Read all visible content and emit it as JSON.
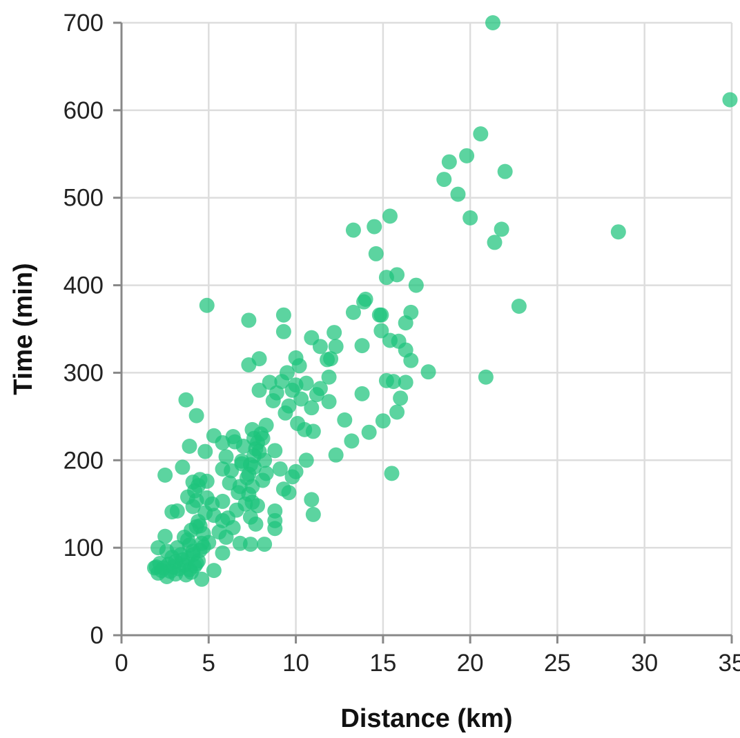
{
  "chart_data": {
    "type": "scatter",
    "title": "",
    "xlabel": "Distance (km)",
    "ylabel": "Time (min)",
    "xlim": [
      0,
      35
    ],
    "ylim": [
      0,
      700
    ],
    "xticks": [
      0,
      5,
      10,
      15,
      20,
      25,
      30,
      35
    ],
    "yticks": [
      0,
      100,
      200,
      300,
      400,
      500,
      600,
      700
    ],
    "grid": true,
    "legend": "none",
    "point_color": "#1DC47B",
    "points": [
      [
        21.3,
        700
      ],
      [
        34.9,
        612
      ],
      [
        20.6,
        573
      ],
      [
        19.8,
        548
      ],
      [
        18.8,
        541
      ],
      [
        22.0,
        530
      ],
      [
        18.5,
        521
      ],
      [
        19.3,
        504
      ],
      [
        20.0,
        477
      ],
      [
        15.4,
        479
      ],
      [
        14.5,
        467
      ],
      [
        13.3,
        463
      ],
      [
        21.8,
        464
      ],
      [
        28.5,
        461
      ],
      [
        21.4,
        449
      ],
      [
        14.6,
        436
      ],
      [
        15.8,
        412
      ],
      [
        15.2,
        409
      ],
      [
        16.9,
        400
      ],
      [
        14.0,
        384
      ],
      [
        13.9,
        381
      ],
      [
        22.8,
        376
      ],
      [
        4.9,
        377
      ],
      [
        13.3,
        369
      ],
      [
        16.6,
        369
      ],
      [
        14.8,
        366
      ],
      [
        14.9,
        366
      ],
      [
        9.3,
        366
      ],
      [
        7.3,
        360
      ],
      [
        16.3,
        357
      ],
      [
        14.9,
        348
      ],
      [
        9.3,
        347
      ],
      [
        12.2,
        346
      ],
      [
        10.9,
        340
      ],
      [
        15.4,
        337
      ],
      [
        15.9,
        336
      ],
      [
        13.8,
        331
      ],
      [
        11.4,
        330
      ],
      [
        12.3,
        330
      ],
      [
        16.3,
        326
      ],
      [
        10.0,
        317
      ],
      [
        7.9,
        316
      ],
      [
        12.0,
        316
      ],
      [
        11.8,
        315
      ],
      [
        16.6,
        314
      ],
      [
        7.3,
        309
      ],
      [
        10.2,
        308
      ],
      [
        17.6,
        301
      ],
      [
        9.5,
        300
      ],
      [
        20.9,
        295
      ],
      [
        11.9,
        295
      ],
      [
        8.5,
        289
      ],
      [
        15.2,
        291
      ],
      [
        15.6,
        290
      ],
      [
        16.3,
        289
      ],
      [
        9.2,
        290
      ],
      [
        10.6,
        288
      ],
      [
        10.0,
        286
      ],
      [
        9.8,
        280
      ],
      [
        11.4,
        282
      ],
      [
        7.9,
        280
      ],
      [
        8.9,
        277
      ],
      [
        11.2,
        275
      ],
      [
        13.8,
        276
      ],
      [
        16.0,
        271
      ],
      [
        10.3,
        270
      ],
      [
        8.7,
        268
      ],
      [
        11.9,
        267
      ],
      [
        3.7,
        269
      ],
      [
        9.6,
        262
      ],
      [
        10.9,
        260
      ],
      [
        15.8,
        255
      ],
      [
        9.4,
        254
      ],
      [
        4.3,
        251
      ],
      [
        12.8,
        246
      ],
      [
        15.0,
        245
      ],
      [
        10.1,
        242
      ],
      [
        8.3,
        240
      ],
      [
        10.5,
        235
      ],
      [
        7.5,
        235
      ],
      [
        11.0,
        233
      ],
      [
        14.2,
        232
      ],
      [
        8.0,
        230
      ],
      [
        5.3,
        228
      ],
      [
        6.4,
        227
      ],
      [
        13.2,
        222
      ],
      [
        7.6,
        225
      ],
      [
        7.8,
        220
      ],
      [
        3.9,
        216
      ],
      [
        7.0,
        216
      ],
      [
        5.8,
        220
      ],
      [
        6.5,
        221
      ],
      [
        7.7,
        213
      ],
      [
        8.8,
        211
      ],
      [
        4.8,
        210
      ],
      [
        12.3,
        206
      ],
      [
        7.6,
        205
      ],
      [
        6.0,
        204
      ],
      [
        8.2,
        200
      ],
      [
        10.6,
        200
      ],
      [
        6.9,
        196
      ],
      [
        7.4,
        195
      ],
      [
        7.6,
        192
      ],
      [
        3.5,
        192
      ],
      [
        9.1,
        190
      ],
      [
        5.8,
        190
      ],
      [
        6.3,
        188
      ],
      [
        10.0,
        187
      ],
      [
        7.3,
        184
      ],
      [
        2.5,
        183
      ],
      [
        15.5,
        185
      ],
      [
        9.8,
        181
      ],
      [
        8.1,
        177
      ],
      [
        4.5,
        178
      ],
      [
        4.1,
        175
      ],
      [
        4.9,
        176
      ],
      [
        6.2,
        174
      ],
      [
        4.4,
        171
      ],
      [
        9.3,
        167
      ],
      [
        9.6,
        163
      ],
      [
        6.7,
        163
      ],
      [
        7.3,
        161
      ],
      [
        3.8,
        158
      ],
      [
        4.9,
        157
      ],
      [
        4.3,
        154
      ],
      [
        5.8,
        153
      ],
      [
        7.5,
        152
      ],
      [
        10.9,
        155
      ],
      [
        7.8,
        148
      ],
      [
        4.1,
        147
      ],
      [
        6.6,
        143
      ],
      [
        3.2,
        142
      ],
      [
        2.9,
        141
      ],
      [
        8.8,
        142
      ],
      [
        11.0,
        138
      ],
      [
        5.3,
        137
      ],
      [
        7.4,
        135
      ],
      [
        6.1,
        134
      ],
      [
        5.8,
        131
      ],
      [
        4.4,
        130
      ],
      [
        8.8,
        131
      ],
      [
        7.7,
        127
      ],
      [
        4.3,
        124
      ],
      [
        6.4,
        123
      ],
      [
        8.8,
        122
      ],
      [
        4.0,
        120
      ],
      [
        5.6,
        118
      ],
      [
        4.7,
        116
      ],
      [
        2.5,
        113
      ],
      [
        3.6,
        112
      ],
      [
        6.0,
        112
      ],
      [
        5.0,
        106
      ],
      [
        6.8,
        105
      ],
      [
        7.4,
        104
      ],
      [
        8.2,
        104
      ],
      [
        3.9,
        103
      ],
      [
        4.7,
        101
      ],
      [
        2.1,
        100
      ],
      [
        3.2,
        100
      ],
      [
        4.5,
        97
      ],
      [
        2.6,
        96
      ],
      [
        5.8,
        94
      ],
      [
        3.4,
        92
      ],
      [
        4.1,
        92
      ],
      [
        2.9,
        89
      ],
      [
        3.8,
        88
      ],
      [
        4.4,
        85
      ],
      [
        3.1,
        84
      ],
      [
        2.2,
        82
      ],
      [
        2.7,
        81
      ],
      [
        3.6,
        80
      ],
      [
        4.2,
        79
      ],
      [
        2.0,
        78
      ],
      [
        2.4,
        77
      ],
      [
        3.3,
        76
      ],
      [
        3.9,
        75
      ],
      [
        5.3,
        74
      ],
      [
        2.8,
        73
      ],
      [
        4.0,
        72
      ],
      [
        2.1,
        71
      ],
      [
        3.1,
        70
      ],
      [
        3.7,
        69
      ],
      [
        2.6,
        67
      ],
      [
        4.6,
        64
      ],
      [
        1.9,
        77
      ],
      [
        2.3,
        74
      ],
      [
        3.0,
        78
      ],
      [
        3.5,
        86
      ],
      [
        4.3,
        82
      ],
      [
        4.1,
        96
      ],
      [
        4.6,
        105
      ],
      [
        3.8,
        109
      ],
      [
        4.5,
        125
      ],
      [
        4.8,
        140
      ],
      [
        5.2,
        150
      ],
      [
        4.2,
        165
      ],
      [
        6.8,
        170
      ],
      [
        7.2,
        180
      ],
      [
        7.9,
        210
      ],
      [
        8.1,
        225
      ],
      [
        6.9,
        199
      ],
      [
        7.5,
        170
      ],
      [
        8.3,
        185
      ],
      [
        7.1,
        150
      ]
    ]
  }
}
